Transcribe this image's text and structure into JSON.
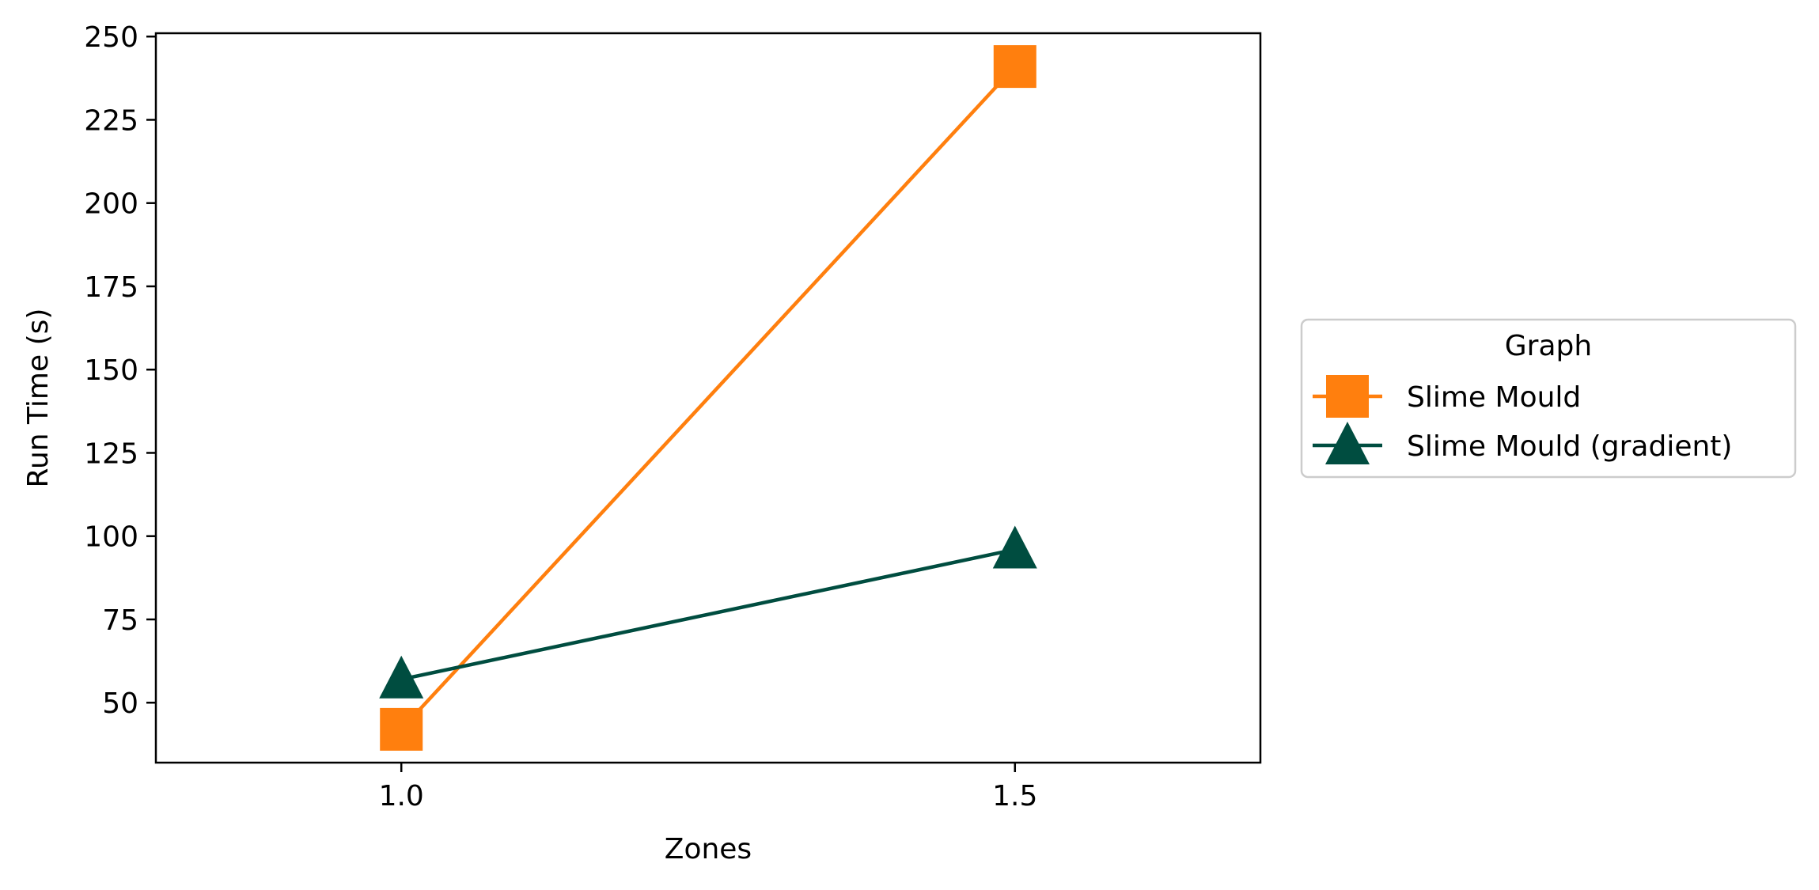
{
  "chart_data": {
    "type": "line",
    "title": "",
    "xlabel": "Zones",
    "ylabel": "Run Time (s)",
    "x": [
      1.0,
      1.5
    ],
    "x_ticks": [
      "1.0",
      "1.5"
    ],
    "y_ticks": [
      "50",
      "75",
      "100",
      "125",
      "150",
      "175",
      "200",
      "225",
      "250"
    ],
    "xlim": [
      0.8,
      1.7
    ],
    "ylim": [
      32,
      251
    ],
    "grid": false,
    "legend": {
      "title": "Graph",
      "placement": "center-right outside"
    },
    "series": [
      {
        "name": "Slime Mould",
        "values": [
          42,
          241
        ],
        "color": "#ff7f0e",
        "marker": "square"
      },
      {
        "name": "Slime Mould (gradient)",
        "values": [
          57,
          96
        ],
        "color": "#004d40",
        "marker": "triangle"
      }
    ]
  }
}
